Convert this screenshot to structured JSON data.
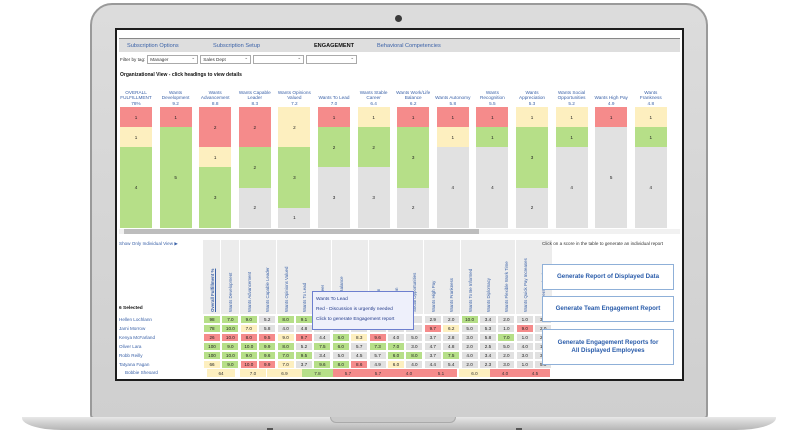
{
  "tabs": [
    "Subscription Options",
    "Subscription Setup",
    "ENGAGEMENT",
    "Behavioral Competencies"
  ],
  "active_tab": 2,
  "filter": {
    "label": "Filter by tag:",
    "values": [
      "Manager",
      "Sales Dept",
      "",
      ""
    ]
  },
  "org_title": "Organizational View - click headings to view details",
  "bars": [
    {
      "label": "OVERALL FULFILLMENT",
      "score": "78%",
      "segments": {
        "red": 1,
        "yellow": 1,
        "green": 4,
        "gray": 0
      }
    },
    {
      "label": "Wants Development",
      "score": "9.2",
      "segments": {
        "red": 1,
        "yellow": 0,
        "green": 5,
        "gray": 0
      }
    },
    {
      "label": "Wants Advancement",
      "score": "8.8",
      "segments": {
        "red": 2,
        "yellow": 1,
        "green": 3,
        "gray": 0
      }
    },
    {
      "label": "Wants Capable Leader",
      "score": "8.3",
      "segments": {
        "red": 2,
        "yellow": 0,
        "green": 2,
        "gray": 2
      }
    },
    {
      "label": "Wants Opinions Valued",
      "score": "7.2",
      "segments": {
        "red": 0,
        "yellow": 2,
        "green": 3,
        "gray": 1
      }
    },
    {
      "label": "Wants To Lead",
      "score": "7.0",
      "segments": {
        "red": 1,
        "yellow": 0,
        "green": 2,
        "gray": 3
      }
    },
    {
      "label": "Wants Stable Career",
      "score": "6.4",
      "segments": {
        "red": 0,
        "yellow": 1,
        "green": 2,
        "gray": 3
      }
    },
    {
      "label": "Wants Work/Life Balance",
      "score": "6.2",
      "segments": {
        "red": 1,
        "yellow": 0,
        "green": 3,
        "gray": 2
      }
    },
    {
      "label": "Wants Autonomy",
      "score": "5.8",
      "segments": {
        "red": 1,
        "yellow": 1,
        "green": 0,
        "gray": 4
      }
    },
    {
      "label": "Wants Recognition",
      "score": "5.5",
      "segments": {
        "red": 1,
        "yellow": 0,
        "green": 1,
        "gray": 4
      }
    },
    {
      "label": "Wants Appreciation",
      "score": "5.3",
      "segments": {
        "red": 0,
        "yellow": 1,
        "green": 3,
        "gray": 2
      }
    },
    {
      "label": "Wants Social Opportunities",
      "score": "5.2",
      "segments": {
        "red": 0,
        "yellow": 1,
        "green": 1,
        "gray": 4
      }
    },
    {
      "label": "Wants High Pay",
      "score": "4.9",
      "segments": {
        "red": 1,
        "yellow": 0,
        "green": 0,
        "gray": 5
      }
    },
    {
      "label": "Wants Frankness",
      "score": "4.8",
      "segments": {
        "red": 0,
        "yellow": 1,
        "green": 1,
        "gray": 4
      }
    }
  ],
  "colors": {
    "red": "#f58b8b",
    "yellow": "#fdefbf",
    "green": "#b6df88",
    "gray": "#e1e1e1",
    "link": "#3b62a8"
  },
  "individual_link": "Show Only Individual View ▶",
  "selected_count": "6 Selected",
  "columns": [
    "Overall Fulfillment %",
    "Wants Development",
    "Wants Advancement",
    "Wants Capable Leader",
    "Wants Opinions Valued",
    "Wants To Lead",
    "Stable Career",
    "Work/Life Balance",
    "Autonomy",
    "Recognition",
    "Appreciation",
    "Social Opportunities",
    "Wants High Pay",
    "Wants Frankness",
    "Wants To Be Informed",
    "Wants Diplomacy",
    "Wants Flexible Work Time",
    "Wants Quick Pay Increases",
    "Wants Personal Help"
  ],
  "rows": [
    {
      "name": "Hellen Lochlann",
      "cells": [
        [
          "98",
          "g"
        ],
        [
          "7.0",
          "g"
        ],
        [
          "9.0",
          "g"
        ],
        [
          "5.2",
          ""
        ],
        [
          "8.0",
          "g"
        ],
        [
          "9.1",
          "g"
        ],
        null,
        null,
        null,
        null,
        null,
        null,
        [
          "2.9",
          ""
        ],
        [
          "2.0",
          ""
        ],
        [
          "10.0",
          "g"
        ],
        [
          "3.4",
          ""
        ],
        [
          "2.0",
          ""
        ],
        [
          "1.0",
          ""
        ],
        [
          "3.0",
          ""
        ]
      ]
    },
    {
      "name": "Jami Morrow",
      "cells": [
        [
          "78",
          "g"
        ],
        [
          "10.0",
          "g"
        ],
        [
          "7.0",
          "y"
        ],
        [
          "5.8",
          ""
        ],
        [
          "4.0",
          ""
        ],
        [
          "4.8",
          ""
        ],
        null,
        null,
        null,
        null,
        null,
        null,
        [
          "9.7",
          "r"
        ],
        [
          "6.2",
          "y"
        ],
        [
          "5.0",
          ""
        ],
        [
          "5.3",
          ""
        ],
        [
          "1.0",
          ""
        ],
        [
          "9.0",
          "r"
        ],
        [
          "2.0",
          ""
        ]
      ]
    },
    {
      "name": "Kenya McFarland",
      "cells": [
        [
          "26",
          "r"
        ],
        [
          "10.0",
          "r"
        ],
        [
          "8.0",
          "r"
        ],
        [
          "9.5",
          "r"
        ],
        [
          "9.0",
          "y"
        ],
        [
          "9.7",
          "r"
        ],
        [
          "4.4",
          ""
        ],
        [
          "6.0",
          "g"
        ],
        [
          "8.3",
          "y"
        ],
        [
          "9.6",
          "r"
        ],
        [
          "4.0",
          ""
        ],
        [
          "5.0",
          ""
        ],
        [
          "3.7",
          ""
        ],
        [
          "2.8",
          ""
        ],
        [
          "3.0",
          ""
        ],
        [
          "5.8",
          ""
        ],
        [
          "7.0",
          "g"
        ],
        [
          "1.0",
          ""
        ],
        [
          "2.0",
          ""
        ]
      ]
    },
    {
      "name": "Oliver Lara",
      "cells": [
        [
          "100",
          "g"
        ],
        [
          "9.0",
          "g"
        ],
        [
          "10.0",
          "g"
        ],
        [
          "9.9",
          "g"
        ],
        [
          "8.0",
          "g"
        ],
        [
          "5.2",
          ""
        ],
        [
          "7.5",
          "g"
        ],
        [
          "6.0",
          "g"
        ],
        [
          "5.7",
          ""
        ],
        [
          "7.3",
          "g"
        ],
        [
          "7.0",
          "g"
        ],
        [
          "3.0",
          ""
        ],
        [
          "4.7",
          ""
        ],
        [
          "4.8",
          ""
        ],
        [
          "2.0",
          ""
        ],
        [
          "2.5",
          ""
        ],
        [
          "5.0",
          ""
        ],
        [
          "4.0",
          ""
        ],
        [
          "1.0",
          ""
        ]
      ]
    },
    {
      "name": "Robb Reilly",
      "cells": [
        [
          "100",
          "g"
        ],
        [
          "10.0",
          "g"
        ],
        [
          "9.0",
          "g"
        ],
        [
          "9.6",
          "g"
        ],
        [
          "7.0",
          "g"
        ],
        [
          "9.5",
          "g"
        ],
        [
          "3.4",
          ""
        ],
        [
          "5.0",
          ""
        ],
        [
          "4.5",
          ""
        ],
        [
          "5.7",
          ""
        ],
        [
          "6.0",
          "g"
        ],
        [
          "8.0",
          "g"
        ],
        [
          "3.7",
          ""
        ],
        [
          "7.5",
          "g"
        ],
        [
          "4.0",
          ""
        ],
        [
          "3.4",
          ""
        ],
        [
          "2.0",
          ""
        ],
        [
          "3.0",
          ""
        ],
        [
          "3.0",
          ""
        ]
      ]
    },
    {
      "name": "Tatyana Fagan",
      "cells": [
        [
          "66",
          "y"
        ],
        [
          "9.0",
          "g"
        ],
        [
          "10.0",
          "r"
        ],
        [
          "9.9",
          "r"
        ],
        [
          "7.0",
          "y"
        ],
        [
          "3.7",
          ""
        ],
        [
          "9.6",
          "g"
        ],
        [
          "8.0",
          "g"
        ],
        [
          "8.6",
          "r"
        ],
        [
          "4.9",
          ""
        ],
        [
          "6.0",
          "y"
        ],
        [
          "4.0",
          ""
        ],
        [
          "4.4",
          ""
        ],
        [
          "5.4",
          ""
        ],
        [
          "2.0",
          ""
        ],
        [
          "2.3",
          ""
        ],
        [
          "3.0",
          ""
        ],
        [
          "1.0",
          ""
        ],
        [
          "5.0",
          ""
        ]
      ]
    }
  ],
  "bobbie": {
    "name": "Bobbie Sheoard",
    "cells": [
      [
        "64",
        "y"
      ],
      [
        "7.0",
        "y"
      ],
      [
        "6.9",
        "y"
      ],
      [
        "7.8",
        "g"
      ],
      [
        "5.7",
        "r"
      ],
      [
        "5.7",
        "r"
      ],
      [
        "4.0",
        "r"
      ],
      [
        "5.1",
        "r"
      ],
      [
        "6.0",
        "y"
      ],
      [
        "4.0",
        "r"
      ],
      [
        "4.5",
        "r"
      ]
    ]
  },
  "tooltip": {
    "title": "Wants To Lead",
    "line1": "Red - Discussion is urgently needed",
    "line2": "Click to generate Engagement report"
  },
  "right_panel": {
    "hint": "Click on a score in the table to generate an individual report",
    "buttons": [
      "Generate Report of Displayed Data",
      "Generate Team Engagement Report",
      "Generate Engagement Reports for All Displayed Employees"
    ]
  }
}
